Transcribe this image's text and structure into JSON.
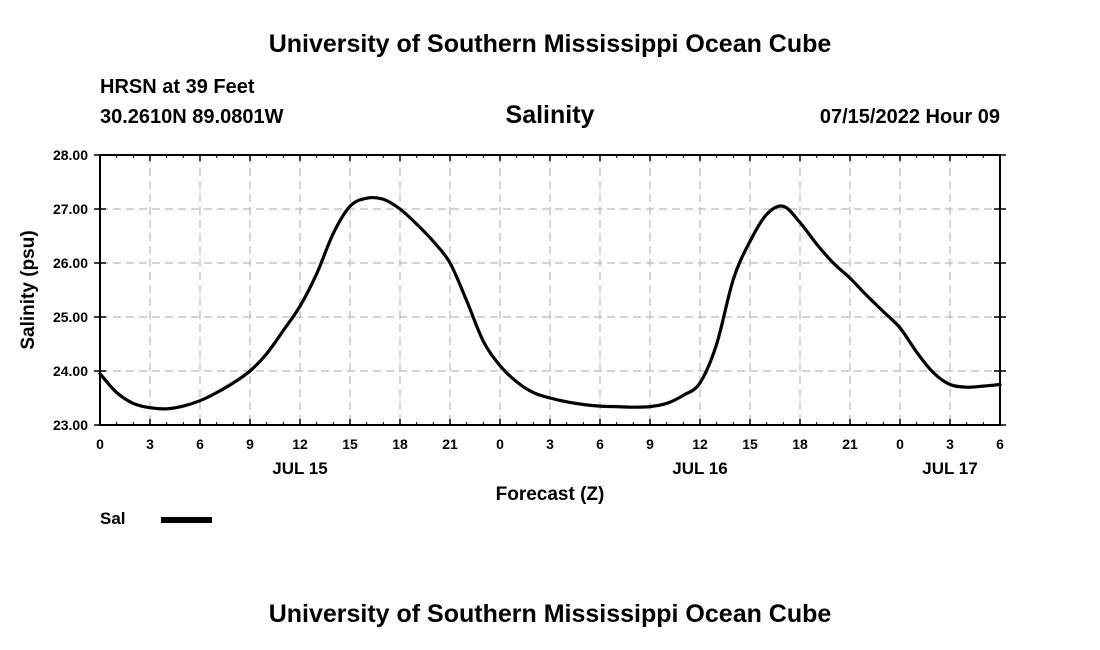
{
  "header": {
    "title_top": "University of Southern Mississippi Ocean Cube",
    "title_bottom": "University of Southern Mississippi Ocean Cube",
    "station": "HRSN at 39 Feet",
    "location": "30.2610N  89.0801W",
    "datetime": "07/15/2022 Hour 09"
  },
  "chart_data": {
    "type": "line",
    "title": "Salinity",
    "xlabel": "Forecast (Z)",
    "ylabel": "Salinity (psu)",
    "ylim": [
      23.0,
      28.0
    ],
    "xlim": [
      0,
      54
    ],
    "grid": true,
    "y_ticks": [
      "23.00",
      "24.00",
      "25.00",
      "26.00",
      "27.00",
      "28.00"
    ],
    "x_ticks": [
      "0",
      "3",
      "6",
      "9",
      "12",
      "15",
      "18",
      "21",
      "0",
      "3",
      "6",
      "9",
      "12",
      "15",
      "18",
      "21",
      "0",
      "3",
      "6"
    ],
    "date_labels": [
      {
        "label": "JUL 15",
        "hour": 12
      },
      {
        "label": "JUL 16",
        "hour": 36
      },
      {
        "label": "JUL 17",
        "hour": 51
      }
    ],
    "legend": {
      "label": "Sal",
      "position": "bottom-left"
    },
    "series": [
      {
        "name": "Sal",
        "x": [
          0,
          1,
          2,
          3,
          4,
          5,
          6,
          7,
          8,
          9,
          10,
          11,
          12,
          13,
          14,
          15,
          16,
          17,
          18,
          19,
          20,
          21,
          22,
          23,
          24,
          25,
          26,
          27,
          28,
          29,
          30,
          31,
          32,
          33,
          34,
          35,
          36,
          37,
          38,
          39,
          40,
          41,
          42,
          43,
          44,
          45,
          46,
          47,
          48,
          49,
          50,
          51,
          52,
          53,
          54
        ],
        "values": [
          23.95,
          23.6,
          23.4,
          23.32,
          23.3,
          23.35,
          23.45,
          23.6,
          23.78,
          24.0,
          24.32,
          24.75,
          25.2,
          25.8,
          26.55,
          27.05,
          27.2,
          27.18,
          27.0,
          26.72,
          26.4,
          26.0,
          25.3,
          24.55,
          24.1,
          23.8,
          23.6,
          23.5,
          23.43,
          23.38,
          23.35,
          23.34,
          23.33,
          23.34,
          23.4,
          23.55,
          23.78,
          24.5,
          25.7,
          26.4,
          26.9,
          27.05,
          26.75,
          26.35,
          26.0,
          25.72,
          25.4,
          25.1,
          24.8,
          24.35,
          23.97,
          23.75,
          23.7,
          23.72,
          23.75
        ]
      }
    ]
  }
}
